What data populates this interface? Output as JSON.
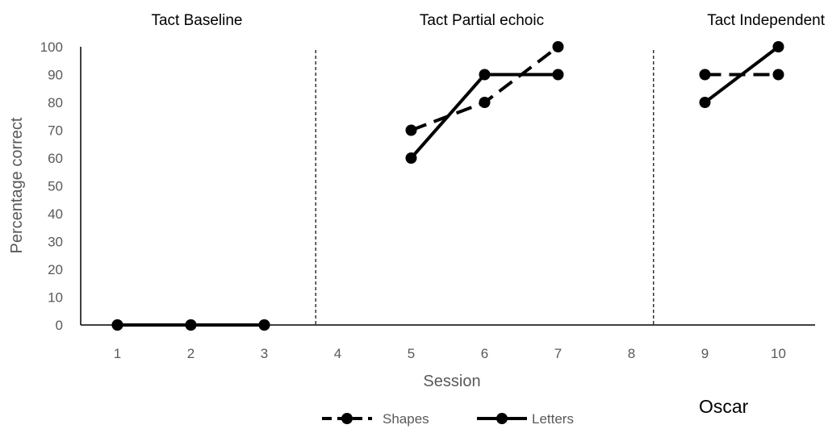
{
  "chart_data": {
    "type": "line",
    "title": "",
    "xlabel": "Session",
    "ylabel": "Percentage correct",
    "x": [
      1,
      2,
      3,
      4,
      5,
      6,
      7,
      8,
      9,
      10
    ],
    "xlim": [
      0.5,
      10.5
    ],
    "ylim": [
      0,
      100
    ],
    "ytick_step": 10,
    "grid": false,
    "legend_position": "bottom",
    "phases": [
      {
        "label": "Tact Baseline"
      },
      {
        "label": "Tact Partial echoic"
      },
      {
        "label": "Tact Independent"
      }
    ],
    "phase_change_lines": [
      3.7,
      8.3
    ],
    "series": [
      {
        "name": "Shapes",
        "style": "dashed",
        "color": "#000000",
        "segments": [
          {
            "x": [
              1,
              2,
              3
            ],
            "y": [
              0,
              0,
              0
            ]
          },
          {
            "x": [
              5,
              6,
              7
            ],
            "y": [
              70,
              80,
              100
            ]
          },
          {
            "x": [
              9,
              10
            ],
            "y": [
              90,
              90
            ]
          }
        ]
      },
      {
        "name": "Letters",
        "style": "solid",
        "color": "#000000",
        "segments": [
          {
            "x": [
              1,
              2,
              3
            ],
            "y": [
              0,
              0,
              0
            ]
          },
          {
            "x": [
              5,
              6,
              7
            ],
            "y": [
              60,
              90,
              90
            ]
          },
          {
            "x": [
              9,
              10
            ],
            "y": [
              80,
              100
            ]
          }
        ]
      }
    ],
    "participant": "Oscar"
  }
}
